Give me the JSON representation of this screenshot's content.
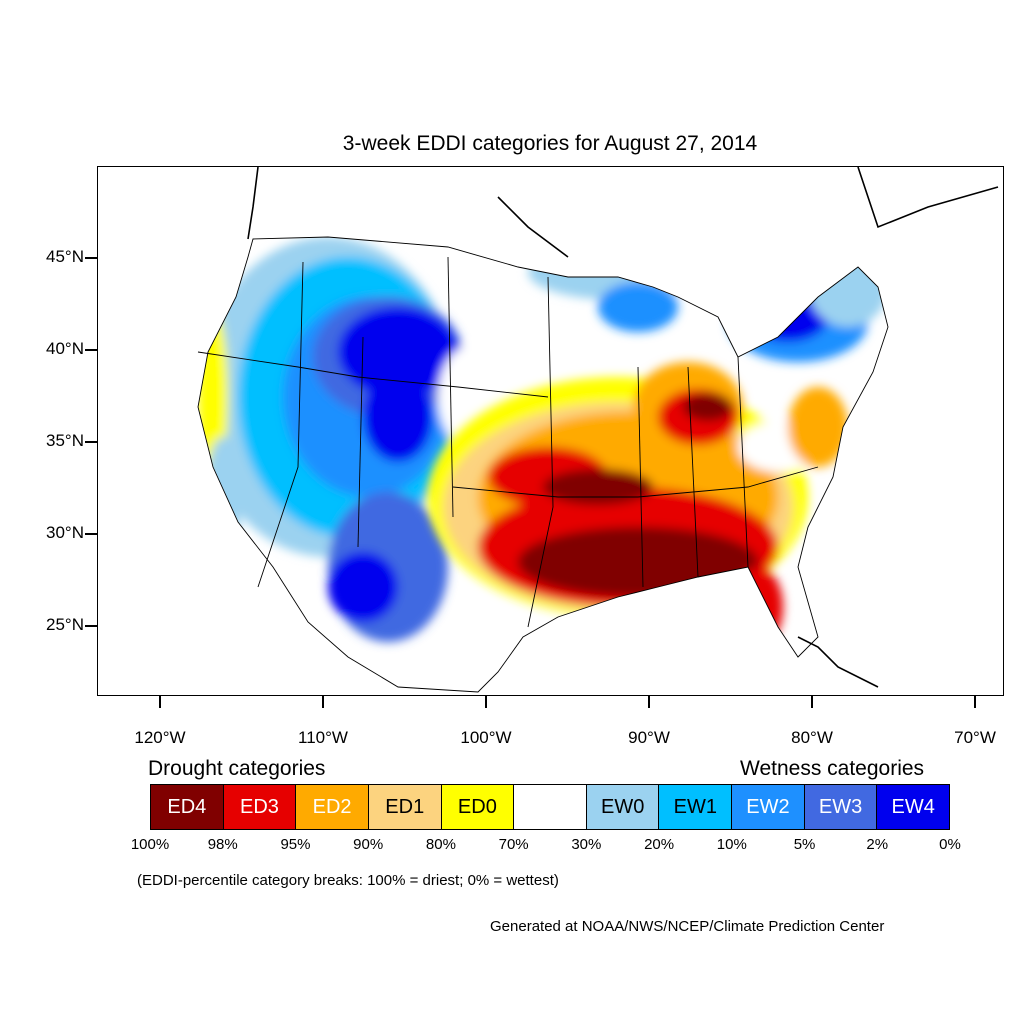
{
  "title": "3-week EDDI categories for August 27, 2014",
  "y_axis": {
    "ticks": [
      {
        "label": "45°N",
        "lat": 45
      },
      {
        "label": "40°N",
        "lat": 40
      },
      {
        "label": "35°N",
        "lat": 35
      },
      {
        "label": "30°N",
        "lat": 30
      },
      {
        "label": "25°N",
        "lat": 25
      }
    ]
  },
  "x_axis": {
    "ticks": [
      {
        "label": "120°W",
        "lon": -120
      },
      {
        "label": "110°W",
        "lon": -110
      },
      {
        "label": "100°W",
        "lon": -100
      },
      {
        "label": "90°W",
        "lon": -90
      },
      {
        "label": "80°W",
        "lon": -80
      },
      {
        "label": "70°W",
        "lon": -70
      }
    ]
  },
  "legend": {
    "drought_heading": "Drought categories",
    "wetness_heading": "Wetness categories",
    "categories": [
      {
        "label": "ED4",
        "color": "#800000",
        "text_color": "#ffffff"
      },
      {
        "label": "ED3",
        "color": "#e60000",
        "text_color": "#ffffff"
      },
      {
        "label": "ED2",
        "color": "#ffaa00",
        "text_color": "#ffffff"
      },
      {
        "label": "ED1",
        "color": "#fcd37f",
        "text_color": "#000000"
      },
      {
        "label": "ED0",
        "color": "#ffff00",
        "text_color": "#000000"
      },
      {
        "label": "",
        "color": "#ffffff",
        "text_color": "#000000"
      },
      {
        "label": "EW0",
        "color": "#9bd2f0",
        "text_color": "#000000"
      },
      {
        "label": "EW1",
        "color": "#00bfff",
        "text_color": "#000000"
      },
      {
        "label": "EW2",
        "color": "#1e90ff",
        "text_color": "#ffffff"
      },
      {
        "label": "EW3",
        "color": "#4169e1",
        "text_color": "#ffffff"
      },
      {
        "label": "EW4",
        "color": "#0000ee",
        "text_color": "#ffffff"
      }
    ],
    "breaks": [
      "100%",
      "98%",
      "95%",
      "90%",
      "80%",
      "70%",
      "30%",
      "20%",
      "10%",
      "5%",
      "2%",
      "0%"
    ]
  },
  "note": "(EDDI-percentile category breaks: 100% = driest; 0% = wettest)",
  "credit": "Generated at NOAA/NWS/NCEP/Climate Prediction Center"
}
